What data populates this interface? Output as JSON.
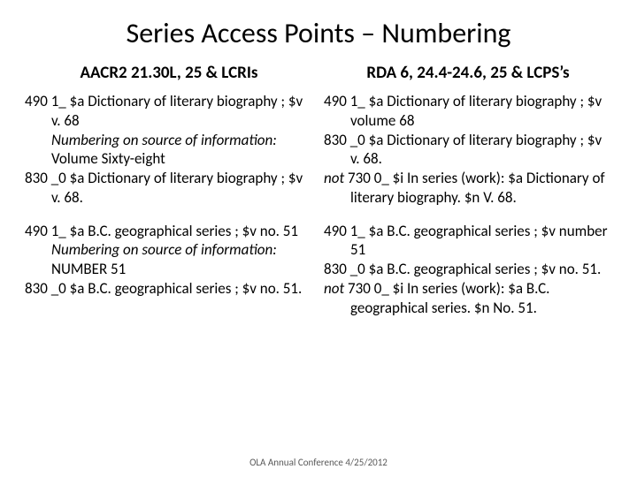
{
  "title": "Series Access Points – Numbering",
  "left": {
    "heading": "AACR2 21.30L, 25 & LCRIs",
    "b1_l1": "490 1_ $a Dictionary of literary biography ; $v v. 68",
    "b1_l2a": "Numbering on source of information:",
    "b1_l2b": "  Volume Sixty-eight",
    "b1_l3": "830 _0 $a Dictionary of literary biography ; $v v. 68.",
    "b2_l1": "490 1_ $a B.C. geographical series ; $v no. 51",
    "b2_l2a": "Numbering on source of information:",
    "b2_l2b": "  NUMBER 51",
    "b2_l3": "830 _0 $a B.C. geographical series ; $v no. 51."
  },
  "right": {
    "heading": "RDA  6, 24.4-24.6, 25 & LCPS’s",
    "b1_l1": "490 1_ $a Dictionary of literary biography ; $v volume 68",
    "b1_l2": "830 _0 $a Dictionary of literary biography ; $v v. 68.",
    "b1_l3a": "not",
    "b1_l3b": " 730 0_ $i In series (work): $a Dictionary of literary biography. $n V. 68.",
    "b2_l1": "490 1_ $a B.C. geographical series ; $v number 51",
    "b2_l2": "830 _0 $a B.C. geographical series ; $v no. 51.",
    "b2_l3a": "not",
    "b2_l3b": " 730 0_ $i In series (work): $a B.C. geographical series. $n No. 51."
  },
  "footer": "OLA Annual Conference 4/25/2012",
  "style": {
    "background": "#ffffff",
    "text_color": "#000000",
    "footer_color": "#595959",
    "title_fontsize": 32,
    "heading_fontsize": 19,
    "body_fontsize": 17,
    "footer_fontsize": 11
  }
}
